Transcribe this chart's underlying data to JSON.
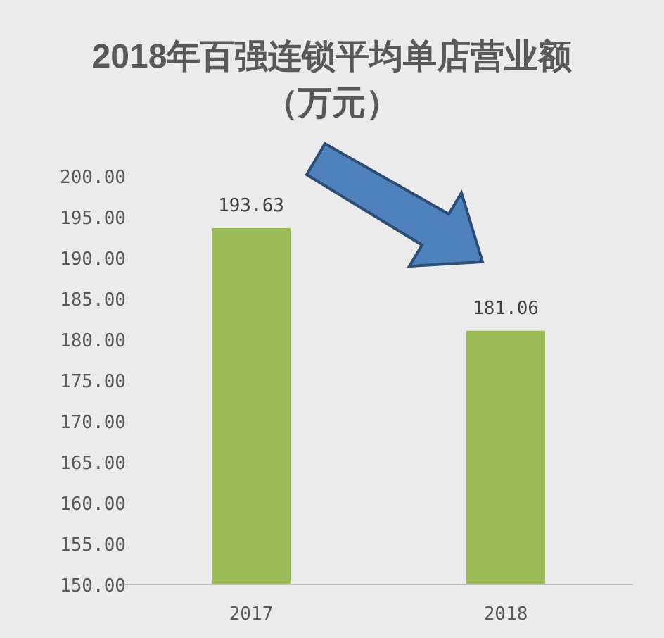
{
  "chart_data": {
    "type": "bar",
    "title": "2018年百强连锁平均单店营业额（万元）",
    "categories": [
      "2017",
      "2018"
    ],
    "values": [
      193.63,
      181.06
    ],
    "color": "#9bbb59",
    "ylim": [
      150,
      200
    ],
    "yticks": [
      {
        "value": 150,
        "label": "150.00"
      },
      {
        "value": 155,
        "label": "155.00"
      },
      {
        "value": 160,
        "label": "160.00"
      },
      {
        "value": 165,
        "label": "165.00"
      },
      {
        "value": 170,
        "label": "170.00"
      },
      {
        "value": 175,
        "label": "175.00"
      },
      {
        "value": 180,
        "label": "180.00"
      },
      {
        "value": 185,
        "label": "185.00"
      },
      {
        "value": 190,
        "label": "190.00"
      },
      {
        "value": 195,
        "label": "195.00"
      },
      {
        "value": 200,
        "label": "200.00"
      }
    ],
    "data_labels": true,
    "grid": false
  }
}
